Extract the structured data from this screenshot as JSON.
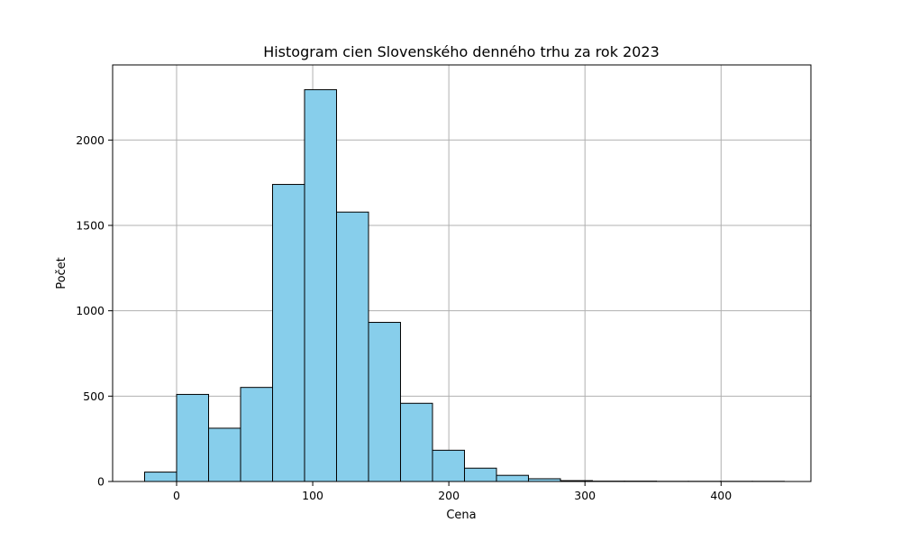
{
  "chart_data": {
    "type": "bar",
    "title": "Histogram cien Slovenského denného trhu za rok 2023",
    "xlabel": "Cena",
    "ylabel": "Počet",
    "xlim": [
      -47,
      466
    ],
    "ylim": [
      0,
      2440
    ],
    "xticks": [
      0,
      100,
      200,
      300,
      400
    ],
    "yticks": [
      0,
      500,
      1000,
      1500,
      2000
    ],
    "grid": true,
    "bar_color": "#87ceeb",
    "edge_color": "#000000",
    "bin_edges": [
      -23.5,
      0,
      23.5,
      47,
      70.5,
      94,
      117.5,
      141,
      164.5,
      188,
      211.5,
      235,
      258.5,
      282,
      305.5,
      329,
      352.5,
      376,
      399.5,
      423,
      446.5
    ],
    "values": [
      55,
      510,
      312,
      551,
      1740,
      2295,
      1578,
      932,
      458,
      183,
      78,
      36,
      16,
      5,
      2,
      2,
      1,
      1,
      1,
      1
    ]
  }
}
